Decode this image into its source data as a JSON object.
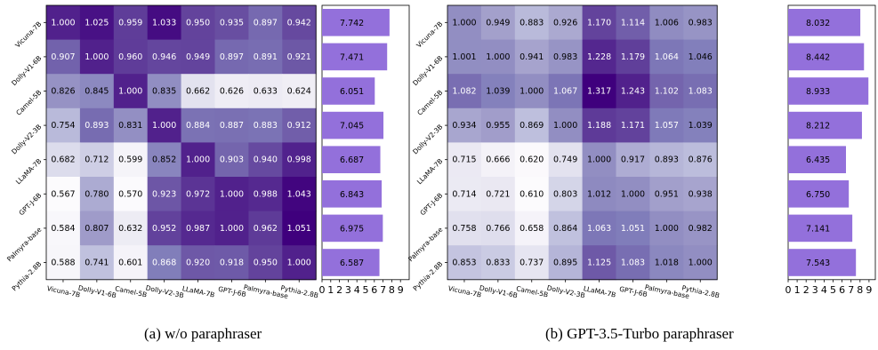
{
  "chart_data": [
    {
      "type": "heatmap",
      "caption": "(a) w/o paraphraser",
      "rows": [
        "Vicuna-7B",
        "Dolly-V1-6B",
        "Camel-5B",
        "Dolly-V2-3B",
        "LLaMA-7B",
        "GPT-J-6B",
        "Palmyra-base",
        "Pythia-2.8B"
      ],
      "cols": [
        "Vicuna-7B",
        "Dolly-V1-6B",
        "Camel-5B",
        "Dolly-V2-3B",
        "LLaMA-7B",
        "GPT-J-6B",
        "Palmyra-base",
        "Pythia-2.8B"
      ],
      "matrix": [
        [
          "1.000",
          "1.025",
          "0.959",
          "1.033",
          "0.950",
          "0.935",
          "0.897",
          "0.942"
        ],
        [
          "0.907",
          "1.000",
          "0.960",
          "0.946",
          "0.949",
          "0.897",
          "0.891",
          "0.921"
        ],
        [
          "0.826",
          "0.845",
          "1.000",
          "0.835",
          "0.662",
          "0.626",
          "0.633",
          "0.624"
        ],
        [
          "0.754",
          "0.893",
          "0.831",
          "1.000",
          "0.884",
          "0.887",
          "0.883",
          "0.912"
        ],
        [
          "0.682",
          "0.712",
          "0.599",
          "0.852",
          "1.000",
          "0.903",
          "0.940",
          "0.998"
        ],
        [
          "0.567",
          "0.780",
          "0.570",
          "0.923",
          "0.972",
          "1.000",
          "0.988",
          "1.043"
        ],
        [
          "0.584",
          "0.807",
          "0.632",
          "0.952",
          "0.987",
          "1.000",
          "0.962",
          "1.051"
        ],
        [
          "0.588",
          "0.741",
          "0.601",
          "0.868",
          "0.920",
          "0.918",
          "0.950",
          "1.000"
        ]
      ],
      "bar": {
        "type": "bar",
        "orientation": "horizontal",
        "values": [
          "7.742",
          "7.471",
          "6.051",
          "7.045",
          "6.687",
          "6.843",
          "6.975",
          "6.587"
        ],
        "xticks": [
          "0",
          "1",
          "2",
          "3",
          "4",
          "5",
          "6",
          "7",
          "8",
          "9"
        ],
        "xlim": [
          0,
          9
        ],
        "color": "#9370db"
      }
    },
    {
      "type": "heatmap",
      "caption": "(b) GPT-3.5-Turbo paraphraser",
      "rows": [
        "Vicuna-7B",
        "Dolly-V1-6B",
        "Camel-5B",
        "Dolly-V2-3B",
        "LLaMA-7B",
        "GPT-J-6B",
        "Palmyra-base",
        "Pythia-2.8B"
      ],
      "cols": [
        "Vicuna-7B",
        "Dolly-V1-6B",
        "Camel-5B",
        "Dolly-V2-3B",
        "LLaMA-7B",
        "GPT-J-6B",
        "Palmyra-base",
        "Pythia-2.8B"
      ],
      "matrix": [
        [
          "1.000",
          "0.949",
          "0.883",
          "0.926",
          "1.170",
          "1.114",
          "1.006",
          "0.983"
        ],
        [
          "1.001",
          "1.000",
          "0.941",
          "0.983",
          "1.228",
          "1.179",
          "1.064",
          "1.046"
        ],
        [
          "1.082",
          "1.039",
          "1.000",
          "1.067",
          "1.317",
          "1.243",
          "1.102",
          "1.083"
        ],
        [
          "0.934",
          "0.955",
          "0.869",
          "1.000",
          "1.188",
          "1.171",
          "1.057",
          "1.039"
        ],
        [
          "0.715",
          "0.666",
          "0.620",
          "0.749",
          "1.000",
          "0.917",
          "0.893",
          "0.876"
        ],
        [
          "0.714",
          "0.721",
          "0.610",
          "0.803",
          "1.012",
          "1.000",
          "0.951",
          "0.938"
        ],
        [
          "0.758",
          "0.766",
          "0.658",
          "0.864",
          "1.063",
          "1.051",
          "1.000",
          "0.982"
        ],
        [
          "0.853",
          "0.833",
          "0.737",
          "0.895",
          "1.125",
          "1.083",
          "1.018",
          "1.000"
        ]
      ],
      "bar": {
        "type": "bar",
        "orientation": "horizontal",
        "values": [
          "8.032",
          "8.442",
          "8.933",
          "8.212",
          "6.435",
          "6.750",
          "7.141",
          "7.543"
        ],
        "xticks": [
          "0",
          "1",
          "2",
          "3",
          "4",
          "5",
          "6",
          "7",
          "8",
          "9"
        ],
        "xlim": [
          0,
          9
        ],
        "color": "#9370db"
      }
    }
  ]
}
